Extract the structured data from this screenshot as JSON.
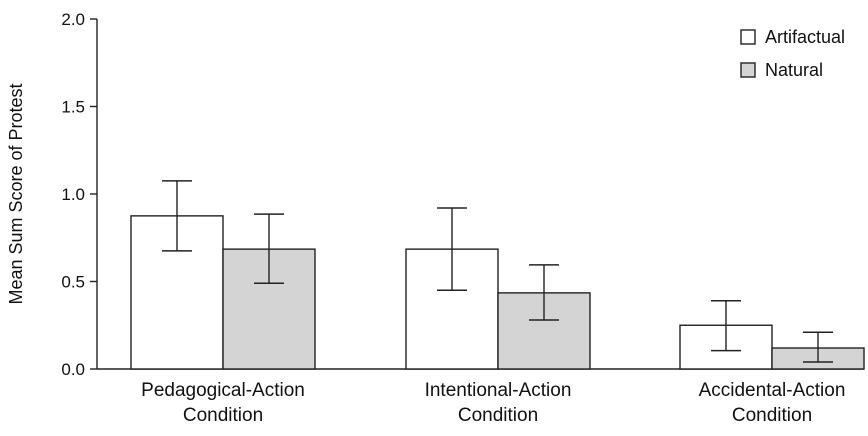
{
  "chart_data": {
    "type": "bar",
    "title": "",
    "xlabel": "",
    "ylabel": "Mean Sum Score of Protest",
    "ylim": [
      0,
      2.0
    ],
    "yticks": [
      "0.0",
      "0.5",
      "1.0",
      "1.5",
      "2.0"
    ],
    "categories": [
      [
        "Pedagogical-Action",
        "Condition"
      ],
      [
        "Intentional-Action",
        "Condition"
      ],
      [
        "Accidental-Action",
        "Condition"
      ]
    ],
    "legend_position": "top-right",
    "grid": false,
    "series": [
      {
        "name": "Artifactual",
        "color": "#ffffff",
        "values": [
          0.875,
          0.685,
          0.25
        ],
        "error_low": [
          0.675,
          0.45,
          0.105
        ],
        "error_high": [
          1.075,
          0.92,
          0.39
        ]
      },
      {
        "name": "Natural",
        "color": "#d4d4d4",
        "values": [
          0.685,
          0.435,
          0.12
        ],
        "error_low": [
          0.49,
          0.28,
          0.04
        ],
        "error_high": [
          0.885,
          0.595,
          0.21
        ]
      }
    ]
  }
}
